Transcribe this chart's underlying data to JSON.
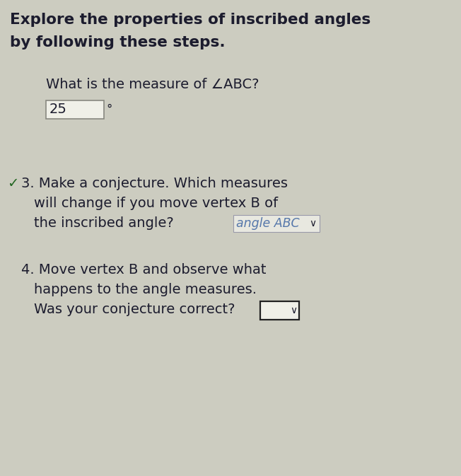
{
  "background_color": "#ccccc0",
  "title_line1": "Explore the properties of inscribed angles",
  "title_line2": "by following these steps.",
  "question_label": "What is the measure of ∠ABC?",
  "answer_value": "25",
  "degree_symbol": "°",
  "step3_check": "✓",
  "step3_text_line1": "3. Make a conjecture. Which measures",
  "step3_text_line2": "will change if you move vertex B of",
  "step3_text_line3": "the inscribed angle?",
  "step3_dropdown_text": "angle ABC",
  "step4_text_line1": "4. Move vertex B and observe what",
  "step4_text_line2": "    happens to the angle measures.",
  "step4_text_line3": "    Was your conjecture correct?",
  "title_fontsize": 15.5,
  "body_fontsize": 14.0,
  "small_fontsize": 12.5,
  "text_color": "#1c1c2e",
  "input_box_color": "#f0f0e8",
  "dropdown_bg": "#e8e8e0",
  "dropdown_text_color": "#5577aa",
  "check_color": "#226622",
  "arrow_color": "#333333"
}
